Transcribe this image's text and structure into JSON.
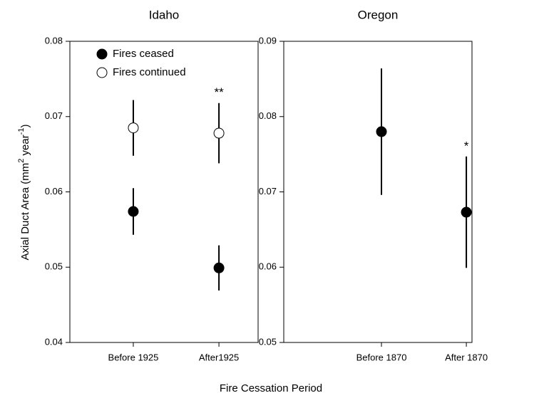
{
  "chart_data": [
    {
      "type": "scatter",
      "title": "Idaho",
      "categories": [
        "Before 1925",
        "After1925"
      ],
      "series": [
        {
          "name": "Fires ceased",
          "color": "#000000",
          "values": [
            0.0574,
            0.0499
          ],
          "errors": [
            0.0031,
            0.003
          ]
        },
        {
          "name": "Fires continued",
          "color": "#ffffff",
          "values": [
            0.0685,
            0.0678
          ],
          "errors": [
            0.0037,
            0.004
          ]
        }
      ],
      "annotations": [
        {
          "text": "**",
          "x": "After1925"
        }
      ],
      "ylim": [
        0.04,
        0.08
      ],
      "yticks": [
        0.04,
        0.05,
        0.06,
        0.07,
        0.08
      ],
      "ylabel": [
        "Axial Duct Area (mm",
        "2",
        " year",
        "-1",
        ")"
      ],
      "xlabel": "Fire Cessation Period",
      "legend": "upper left"
    },
    {
      "type": "scatter",
      "title": "Oregon",
      "categories": [
        "Before 1870",
        "After 1870"
      ],
      "series": [
        {
          "color": "#000000",
          "values": [
            0.078,
            0.0673
          ],
          "errors": [
            0.0084,
            0.0074
          ]
        }
      ],
      "annotations": [
        {
          "text": "*",
          "x": "After 1870"
        }
      ],
      "ylim": [
        0.05,
        0.09
      ],
      "yticks": [
        0.05,
        0.06,
        0.07,
        0.08,
        0.09
      ]
    }
  ]
}
